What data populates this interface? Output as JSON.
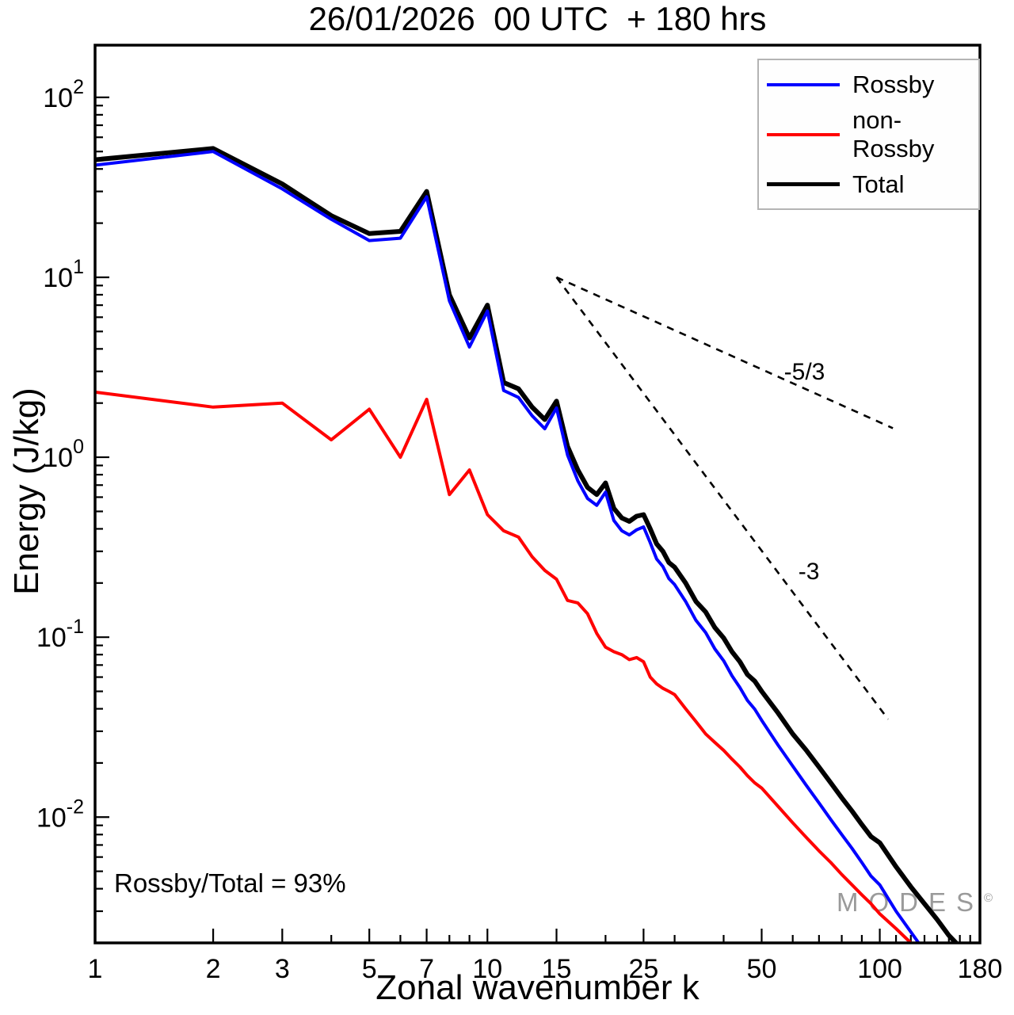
{
  "title": "26/01/2026  00 UTC  + 180 hrs",
  "axes": {
    "xlabel": "Zonal wavenumber k",
    "ylabel": "Energy (J/kg)"
  },
  "legend": {
    "items": [
      {
        "label": "Rossby"
      },
      {
        "label": "non-Rossby"
      },
      {
        "label": "Total"
      }
    ]
  },
  "annotation": "Rossby/Total = 93%",
  "watermark": {
    "text": "MODES",
    "symbol": "©"
  },
  "chart_data": {
    "type": "line",
    "title": "26/01/2026  00 UTC  + 180 hrs",
    "xlabel": "Zonal wavenumber k",
    "ylabel": "Energy (J/kg)",
    "x_scale": "log",
    "y_scale": "log",
    "xlim": [
      1,
      180
    ],
    "ylim": [
      0.002,
      195
    ],
    "x_ticks": [
      1,
      2,
      3,
      5,
      7,
      10,
      15,
      25,
      50,
      100,
      180
    ],
    "y_tick_exponents": [
      2,
      1,
      0,
      -1,
      -2
    ],
    "grid": false,
    "legend_position": "top-right",
    "series": [
      {
        "name": "Rossby",
        "color": "#0000ff",
        "linewidth": 4,
        "k": [
          1,
          2,
          3,
          4,
          5,
          6,
          7,
          8,
          9,
          10,
          11,
          12,
          13,
          14,
          15,
          16,
          17,
          18,
          19,
          20,
          21,
          22,
          23,
          24,
          25,
          26,
          27,
          28,
          29,
          30,
          32,
          34,
          36,
          38,
          40,
          42,
          44,
          46,
          48,
          50,
          55,
          60,
          65,
          70,
          75,
          80,
          85,
          90,
          95,
          100,
          110,
          120,
          130,
          140,
          150
        ],
        "v": [
          42,
          50,
          31,
          21,
          16,
          16.5,
          28,
          7.4,
          4.1,
          6.5,
          2.35,
          2.15,
          1.7,
          1.44,
          1.88,
          1.03,
          0.74,
          0.59,
          0.54,
          0.64,
          0.445,
          0.39,
          0.37,
          0.395,
          0.41,
          0.335,
          0.272,
          0.247,
          0.212,
          0.196,
          0.158,
          0.124,
          0.106,
          0.086,
          0.074,
          0.061,
          0.0525,
          0.0445,
          0.0398,
          0.0345,
          0.0252,
          0.0192,
          0.015,
          0.012,
          0.0097,
          0.008,
          0.0067,
          0.0056,
          0.0047,
          0.0042,
          0.003,
          0.0023,
          0.0018,
          0.0014,
          0.0011
        ]
      },
      {
        "name": "non-Rossby",
        "color": "#ff0000",
        "linewidth": 4,
        "k": [
          1,
          2,
          3,
          4,
          5,
          6,
          7,
          8,
          9,
          10,
          11,
          12,
          13,
          14,
          15,
          16,
          17,
          18,
          19,
          20,
          21,
          22,
          23,
          24,
          25,
          26,
          27,
          28,
          29,
          30,
          32,
          34,
          36,
          38,
          40,
          42,
          44,
          46,
          48,
          50,
          55,
          60,
          65,
          70,
          75,
          80,
          85,
          90,
          95,
          100,
          110,
          120,
          130
        ],
        "v": [
          2.3,
          1.9,
          2.0,
          1.25,
          1.85,
          1.0,
          2.1,
          0.62,
          0.85,
          0.48,
          0.39,
          0.36,
          0.28,
          0.235,
          0.21,
          0.16,
          0.155,
          0.135,
          0.105,
          0.088,
          0.083,
          0.08,
          0.075,
          0.077,
          0.073,
          0.06,
          0.055,
          0.052,
          0.05,
          0.048,
          0.04,
          0.034,
          0.029,
          0.026,
          0.0235,
          0.021,
          0.019,
          0.017,
          0.0155,
          0.0145,
          0.0115,
          0.0093,
          0.0077,
          0.0065,
          0.0056,
          0.0048,
          0.0042,
          0.0037,
          0.0033,
          0.0029,
          0.0024,
          0.002,
          0.0017
        ]
      },
      {
        "name": "Total",
        "color": "#000000",
        "linewidth": 6,
        "k": [
          1,
          2,
          3,
          4,
          5,
          6,
          7,
          8,
          9,
          10,
          11,
          12,
          13,
          14,
          15,
          16,
          17,
          18,
          19,
          20,
          21,
          22,
          23,
          24,
          25,
          26,
          27,
          28,
          29,
          30,
          32,
          34,
          36,
          38,
          40,
          42,
          44,
          46,
          48,
          50,
          55,
          60,
          65,
          70,
          75,
          80,
          85,
          90,
          95,
          100,
          110,
          120,
          130,
          140,
          150,
          160,
          170
        ],
        "v": [
          45,
          52,
          33,
          22,
          17.5,
          18,
          30,
          8.0,
          4.6,
          7.0,
          2.6,
          2.4,
          1.9,
          1.62,
          2.05,
          1.15,
          0.85,
          0.68,
          0.62,
          0.72,
          0.52,
          0.46,
          0.44,
          0.47,
          0.48,
          0.4,
          0.33,
          0.3,
          0.26,
          0.245,
          0.2,
          0.158,
          0.138,
          0.113,
          0.099,
          0.083,
          0.073,
          0.062,
          0.057,
          0.05,
          0.038,
          0.029,
          0.0235,
          0.019,
          0.0155,
          0.0128,
          0.0108,
          0.0091,
          0.0078,
          0.0072,
          0.0053,
          0.0041,
          0.0033,
          0.0027,
          0.0022,
          0.0019,
          0.0016
        ]
      }
    ],
    "reference_lines": [
      {
        "label": "-5/3",
        "x": [
          15,
          108
        ],
        "y": [
          10,
          1.45
        ],
        "label_pos": {
          "x": 57,
          "y": 2.7
        }
      },
      {
        "label": "-3",
        "x": [
          15,
          105
        ],
        "y": [
          10,
          0.035
        ],
        "label_pos": {
          "x": 62,
          "y": 0.21
        }
      }
    ],
    "annotations": [
      {
        "text": "Rossby/Total = 93%",
        "position": "bottom-left"
      }
    ]
  }
}
